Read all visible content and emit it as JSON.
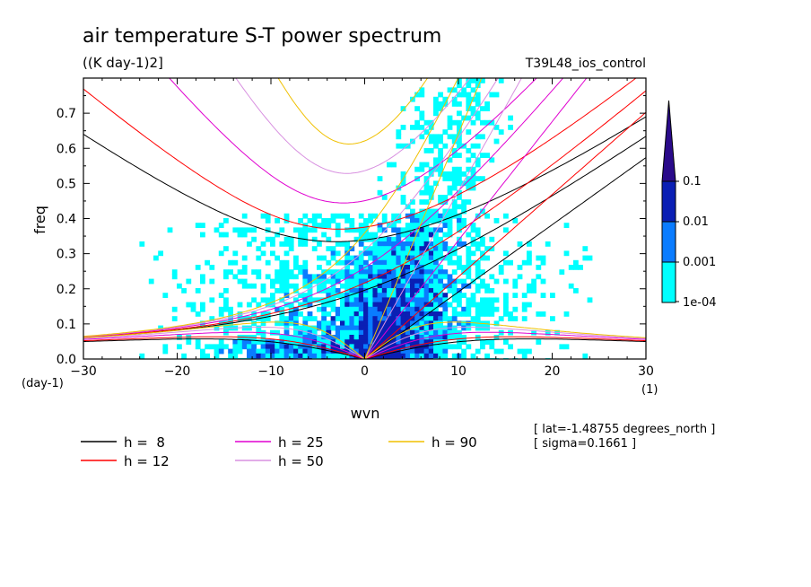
{
  "chart_data": {
    "type": "heatmap",
    "title": "air temperature S-T power spectrum",
    "units": "((K day-1)2]",
    "run_label": "T39L48_ios_control",
    "xlabel": "wvn",
    "ylabel": "freq",
    "x_unit_label": "(1)",
    "y_unit_label": "(day-1)",
    "xlim": [
      -30,
      30
    ],
    "ylim": [
      0,
      0.8
    ],
    "x_ticks": [
      -30,
      -20,
      -10,
      0,
      10,
      20,
      30
    ],
    "x_tick_labels": [
      "−30",
      "−20",
      "−10",
      "0",
      "10",
      "20",
      "30"
    ],
    "y_ticks": [
      0.0,
      0.1,
      0.2,
      0.3,
      0.4,
      0.5,
      0.6,
      0.7
    ],
    "y_tick_labels": [
      "0.0",
      "0.1",
      "0.2",
      "0.3",
      "0.4",
      "0.5",
      "0.6",
      "0.7"
    ],
    "colorbar": {
      "levels": [
        0.0001,
        0.001,
        0.01,
        0.1
      ],
      "labels": [
        "1e-04",
        "0.001",
        "0.01",
        "0.1"
      ],
      "colors": [
        "#00ffff",
        "#0a7cff",
        "#0a1fb4",
        "#2a0a8a"
      ]
    },
    "info": [
      "[ lat=-1.48755 degrees_north ]",
      "[ sigma=0.1661 ]"
    ],
    "dispersion_curves": [
      {
        "label": "h =  8",
        "h": 8,
        "color": "#000000"
      },
      {
        "label": "h = 12",
        "h": 12,
        "color": "#ff0000"
      },
      {
        "label": "h = 25",
        "h": 25,
        "color": "#e000d0"
      },
      {
        "label": "h = 50",
        "h": 50,
        "color": "#d890e0"
      },
      {
        "label": "h = 90",
        "h": 90,
        "color": "#f0c000"
      }
    ],
    "grid": false
  }
}
